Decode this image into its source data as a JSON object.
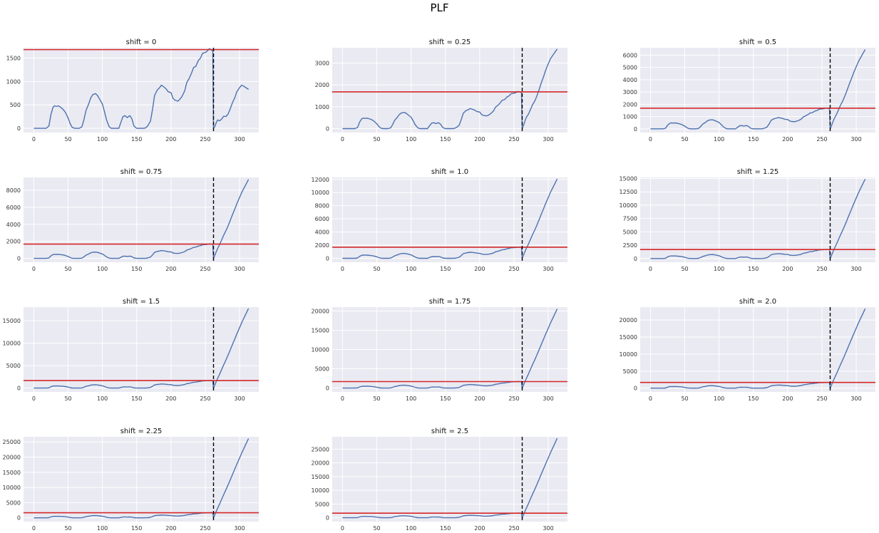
{
  "figure": {
    "title": "PLF"
  },
  "chart_data": {
    "type": "line",
    "shared": {
      "x_range": [
        0,
        313
      ],
      "x_ticks": [
        0,
        50,
        100,
        150,
        200,
        250,
        300
      ],
      "threshold_y": 1680,
      "split_x": 262,
      "colors": {
        "series": "#4c72b0",
        "threshold": "#d62728",
        "split": "#000000",
        "panel_bg": "#eaeaf2"
      },
      "grid": true,
      "base_series": {
        "x": [
          0,
          10,
          18,
          22,
          25,
          28,
          30,
          33,
          36,
          40,
          43,
          46,
          50,
          53,
          56,
          60,
          63,
          66,
          70,
          73,
          76,
          80,
          83,
          86,
          90,
          93,
          96,
          100,
          103,
          106,
          110,
          113,
          116,
          120,
          124,
          126,
          130,
          133,
          136,
          140,
          143,
          146,
          150,
          153,
          156,
          160,
          163,
          166,
          170,
          173,
          176,
          180,
          183,
          186,
          190,
          193,
          196,
          200,
          203,
          206,
          210,
          213,
          216,
          220,
          223,
          226,
          230,
          233,
          236,
          240,
          243,
          246,
          250,
          253,
          256,
          258,
          260,
          261
        ],
        "y": [
          0,
          0,
          0,
          50,
          300,
          450,
          480,
          470,
          480,
          440,
          400,
          340,
          220,
          100,
          20,
          0,
          0,
          0,
          30,
          180,
          380,
          520,
          650,
          720,
          740,
          700,
          620,
          520,
          360,
          180,
          30,
          0,
          0,
          0,
          0,
          90,
          250,
          270,
          230,
          270,
          200,
          50,
          0,
          0,
          0,
          0,
          10,
          50,
          150,
          400,
          700,
          820,
          860,
          920,
          880,
          840,
          780,
          760,
          640,
          600,
          580,
          620,
          680,
          800,
          980,
          1050,
          1180,
          1300,
          1320,
          1450,
          1500,
          1600,
          1620,
          1650,
          1700,
          1680,
          1660,
          1640
        ],
        "post_x": [
          262,
          264,
          266,
          268,
          271,
          274,
          277,
          280,
          283,
          286,
          290,
          293,
          296,
          300,
          303,
          306,
          310,
          313
        ],
        "post_y": [
          0,
          40,
          120,
          180,
          160,
          200,
          260,
          250,
          300,
          400,
          560,
          650,
          780,
          870,
          920,
          900,
          860,
          830
        ]
      }
    },
    "panels": [
      {
        "title": "shift = 0",
        "shift": 0,
        "ylim": [
          -90,
          1720
        ],
        "y_ticks": [
          0,
          500,
          1000,
          1500
        ]
      },
      {
        "title": "shift = 0.25",
        "shift": 0.25,
        "ylim": [
          -180,
          3700
        ],
        "y_ticks": [
          0,
          1000,
          2000,
          3000
        ]
      },
      {
        "title": "shift = 0.5",
        "shift": 0.5,
        "ylim": [
          -300,
          6600
        ],
        "y_ticks": [
          0,
          1000,
          2000,
          3000,
          4000,
          5000,
          6000
        ]
      },
      {
        "title": "shift = 0.75",
        "shift": 0.75,
        "ylim": [
          -450,
          9500
        ],
        "y_ticks": [
          0,
          2000,
          4000,
          6000,
          8000
        ]
      },
      {
        "title": "shift = 1.0",
        "shift": 1.0,
        "ylim": [
          -600,
          12300
        ],
        "y_ticks": [
          0,
          2000,
          4000,
          6000,
          8000,
          10000,
          12000
        ]
      },
      {
        "title": "shift = 1.25",
        "shift": 1.25,
        "ylim": [
          -700,
          15200
        ],
        "y_ticks": [
          0,
          2500,
          5000,
          7500,
          10000,
          12500,
          15000
        ]
      },
      {
        "title": "shift = 1.5",
        "shift": 1.5,
        "ylim": [
          -850,
          18000
        ],
        "y_ticks": [
          0,
          5000,
          10000,
          15000
        ]
      },
      {
        "title": "shift = 1.75",
        "shift": 1.75,
        "ylim": [
          -1000,
          21000
        ],
        "y_ticks": [
          0,
          5000,
          10000,
          15000,
          20000
        ]
      },
      {
        "title": "shift = 2.0",
        "shift": 2.0,
        "ylim": [
          -1100,
          23800
        ],
        "y_ticks": [
          0,
          5000,
          10000,
          15000,
          20000
        ]
      },
      {
        "title": "shift = 2.25",
        "shift": 2.25,
        "ylim": [
          -1250,
          26700
        ],
        "y_ticks": [
          0,
          5000,
          10000,
          15000,
          20000,
          25000
        ]
      },
      {
        "title": "shift = 2.5",
        "shift": 2.5,
        "ylim": [
          -1400,
          29500
        ],
        "y_ticks": [
          0,
          5000,
          10000,
          15000,
          20000,
          25000
        ]
      }
    ]
  }
}
